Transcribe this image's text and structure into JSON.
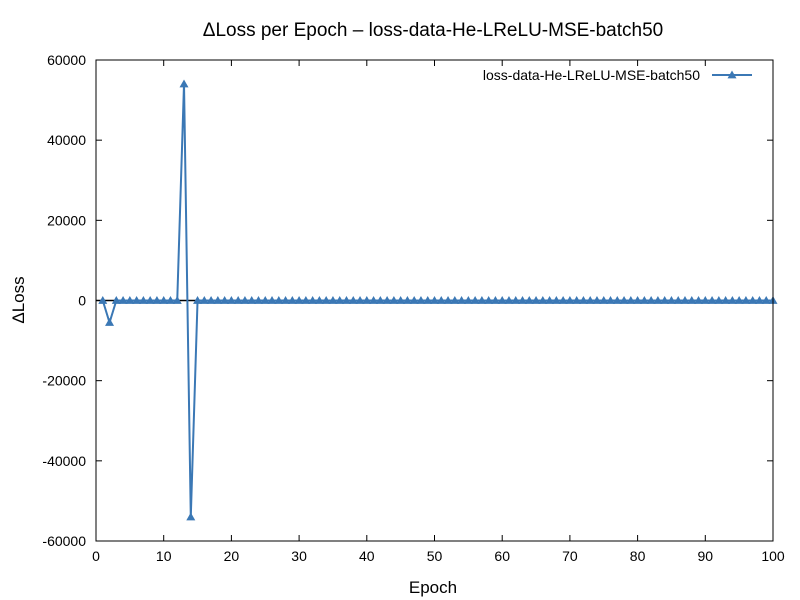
{
  "chart_data": {
    "type": "line",
    "title": "ΔLoss per Epoch – loss-data-He-LReLU-MSE-batch50",
    "xlabel": "Epoch",
    "ylabel": "ΔLoss",
    "xlim": [
      0,
      100
    ],
    "ylim": [
      -60000,
      60000
    ],
    "xticks": [
      0,
      10,
      20,
      30,
      40,
      50,
      60,
      70,
      80,
      90,
      100
    ],
    "yticks": [
      -60000,
      -40000,
      -20000,
      0,
      20000,
      40000,
      60000
    ],
    "legend_position": "top-right",
    "zero_line": true,
    "series": [
      {
        "name": "loss-data-He-LReLU-MSE-batch50",
        "color": "#3b78b5",
        "marker": "triangle",
        "x": [
          1,
          2,
          3,
          4,
          5,
          6,
          7,
          8,
          9,
          10,
          11,
          12,
          13,
          14,
          15,
          16,
          17,
          18,
          19,
          20,
          21,
          22,
          23,
          24,
          25,
          26,
          27,
          28,
          29,
          30,
          31,
          32,
          33,
          34,
          35,
          36,
          37,
          38,
          39,
          40,
          41,
          42,
          43,
          44,
          45,
          46,
          47,
          48,
          49,
          50,
          51,
          52,
          53,
          54,
          55,
          56,
          57,
          58,
          59,
          60,
          61,
          62,
          63,
          64,
          65,
          66,
          67,
          68,
          69,
          70,
          71,
          72,
          73,
          74,
          75,
          76,
          77,
          78,
          79,
          80,
          81,
          82,
          83,
          84,
          85,
          86,
          87,
          88,
          89,
          90,
          91,
          92,
          93,
          94,
          95,
          96,
          97,
          98,
          99,
          100
        ],
        "y": [
          0,
          -5500,
          0,
          0,
          0,
          0,
          0,
          0,
          0,
          0,
          0,
          0,
          54000,
          -54000,
          0,
          0,
          0,
          0,
          0,
          0,
          0,
          0,
          0,
          0,
          0,
          0,
          0,
          0,
          0,
          0,
          0,
          0,
          0,
          0,
          0,
          0,
          0,
          0,
          0,
          0,
          0,
          0,
          0,
          0,
          0,
          0,
          0,
          0,
          0,
          0,
          0,
          0,
          0,
          0,
          0,
          0,
          0,
          0,
          0,
          0,
          0,
          0,
          0,
          0,
          0,
          0,
          0,
          0,
          0,
          0,
          0,
          0,
          0,
          0,
          0,
          0,
          0,
          0,
          0,
          0,
          0,
          0,
          0,
          0,
          0,
          0,
          0,
          0,
          0,
          0,
          0,
          0,
          0,
          0,
          0,
          0,
          0,
          0,
          0,
          0
        ]
      }
    ]
  }
}
